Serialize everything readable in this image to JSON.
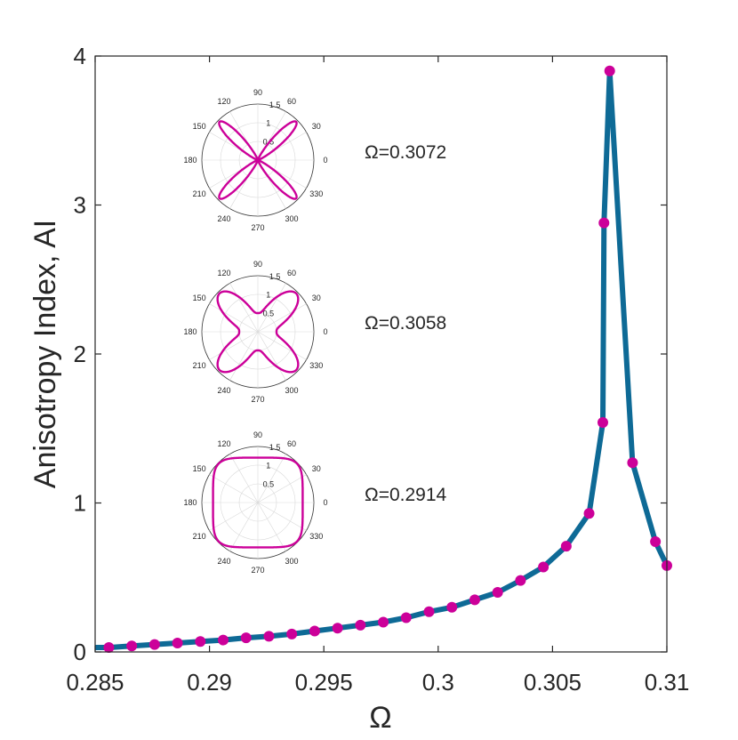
{
  "chart_data": {
    "type": "line",
    "xlabel": "Ω",
    "ylabel": "Anisotropy Index, AI",
    "xlim": [
      0.285,
      0.31
    ],
    "ylim": [
      0,
      4
    ],
    "x_ticks": [
      0.285,
      0.29,
      0.295,
      0.3,
      0.305,
      0.31
    ],
    "x_tick_labels": [
      "0.285",
      "0.29",
      "0.295",
      "0.3",
      "0.305",
      "0.31"
    ],
    "y_ticks": [
      0,
      1,
      2,
      3,
      4
    ],
    "y_tick_labels": [
      "0",
      "1",
      "2",
      "3",
      "4"
    ],
    "line_color": "#0e6a96",
    "marker_color": "#cc0099",
    "series": [
      {
        "name": "AI",
        "x": [
          0.285,
          0.2856,
          0.2866,
          0.2876,
          0.2886,
          0.2896,
          0.2906,
          0.2916,
          0.2926,
          0.2936,
          0.2946,
          0.2956,
          0.2966,
          0.2976,
          0.2986,
          0.2996,
          0.3006,
          0.3016,
          0.3026,
          0.3036,
          0.3046,
          0.3056,
          0.3066,
          0.3072,
          0.30725,
          0.3075,
          0.3085,
          0.3095,
          0.31
        ],
        "y": [
          0.03,
          0.03,
          0.04,
          0.05,
          0.06,
          0.07,
          0.08,
          0.095,
          0.105,
          0.12,
          0.14,
          0.16,
          0.18,
          0.2,
          0.23,
          0.27,
          0.3,
          0.35,
          0.4,
          0.48,
          0.57,
          0.71,
          0.93,
          1.54,
          2.88,
          3.9,
          1.27,
          0.74,
          0.58
        ],
        "markers": [
          false,
          true,
          true,
          true,
          true,
          true,
          true,
          true,
          true,
          true,
          true,
          true,
          true,
          true,
          true,
          true,
          true,
          true,
          true,
          true,
          true,
          true,
          true,
          true,
          true,
          true,
          true,
          true,
          true
        ]
      }
    ],
    "insets": [
      {
        "label": "Ω=0.3072",
        "shape": "x-cross",
        "angle_labels": [
          "0",
          "30",
          "60",
          "90",
          "120",
          "150",
          "180",
          "210",
          "240",
          "270",
          "300",
          "330"
        ],
        "radius_labels": [
          "0.5",
          "1",
          "1.5"
        ]
      },
      {
        "label": "Ω=0.3058",
        "shape": "star",
        "angle_labels": [
          "0",
          "30",
          "60",
          "90",
          "120",
          "150",
          "180",
          "210",
          "240",
          "270",
          "300",
          "330"
        ],
        "radius_labels": [
          "0.5",
          "1",
          "1.5"
        ]
      },
      {
        "label": "Ω=0.2914",
        "shape": "squircle",
        "angle_labels": [
          "0",
          "30",
          "60",
          "90",
          "120",
          "150",
          "180",
          "210",
          "240",
          "270",
          "300",
          "330"
        ],
        "radius_labels": [
          "0.5",
          "1",
          "1.5"
        ]
      }
    ]
  }
}
